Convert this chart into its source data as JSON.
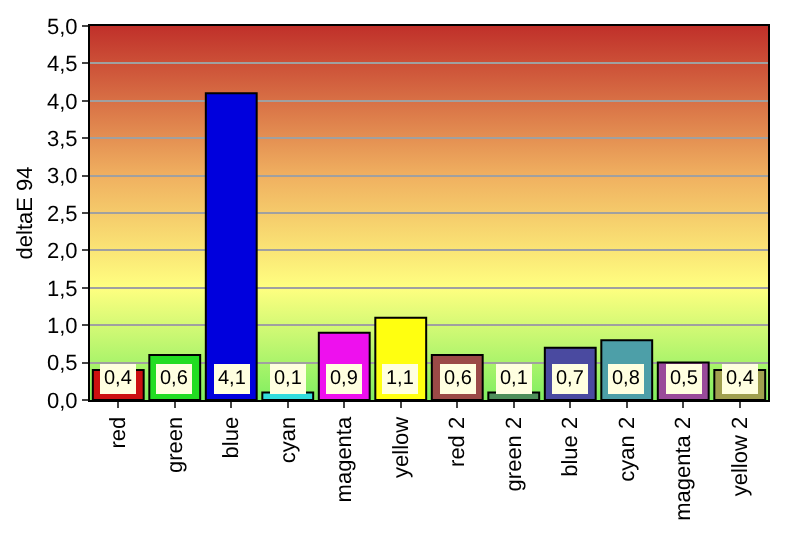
{
  "chart_data": {
    "type": "bar",
    "ylabel": "deltaE 94",
    "categories": [
      "red",
      "green",
      "blue",
      "cyan",
      "magenta",
      "yellow",
      "red 2",
      "green 2",
      "blue 2",
      "cyan 2",
      "magenta 2",
      "yellow 2"
    ],
    "values": [
      0.4,
      0.6,
      4.1,
      0.1,
      0.9,
      1.1,
      0.6,
      0.1,
      0.7,
      0.8,
      0.5,
      0.4
    ],
    "colors": [
      "#cc1010",
      "#22dd22",
      "#0000dd",
      "#33dddd",
      "#ee10ee",
      "#ffff10",
      "#9b4a47",
      "#4e8f5a",
      "#4a4aa0",
      "#4d9fa8",
      "#9a4a9a",
      "#a0a050"
    ],
    "value_labels": [
      "0,4",
      "0,6",
      "4,1",
      "0,1",
      "0,9",
      "1,1",
      "0,6",
      "0,1",
      "0,7",
      "0,8",
      "0,5",
      "0,4"
    ],
    "ylim": [
      0,
      5
    ],
    "yticks": [
      {
        "value": 0,
        "label": "0,0"
      },
      {
        "value": 0.5,
        "label": "0,5"
      },
      {
        "value": 1,
        "label": "1,0"
      },
      {
        "value": 1.5,
        "label": "1,5"
      },
      {
        "value": 2,
        "label": "2,0"
      },
      {
        "value": 2.5,
        "label": "2,5"
      },
      {
        "value": 3,
        "label": "3,0"
      },
      {
        "value": 3.5,
        "label": "3,5"
      },
      {
        "value": 4,
        "label": "4,0"
      },
      {
        "value": 4.5,
        "label": "4,5"
      },
      {
        "value": 5,
        "label": "5,0"
      }
    ],
    "grid": "y"
  }
}
